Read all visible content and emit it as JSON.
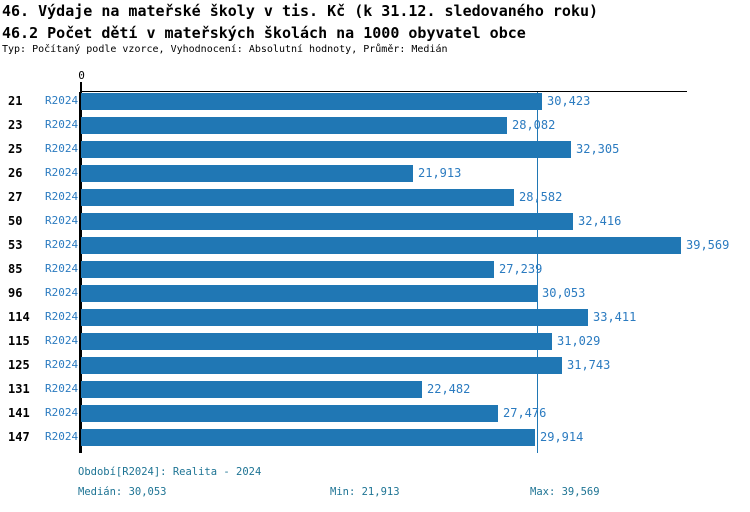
{
  "header": {
    "title": "46. Výdaje na mateřské školy v tis. Kč (k 31.12. sledovaného roku)",
    "subtitle": "46.2 Počet dětí v mateřských školách na 1000 obyvatel obce",
    "meta": "Typ: Počítaný podle vzorce, Vyhodnocení: Absolutní hodnoty, Průměr: Medián"
  },
  "chart": {
    "zero_label": "0",
    "period_label": "R2024"
  },
  "chart_data": {
    "type": "bar",
    "orientation": "horizontal",
    "title": "46. Výdaje na mateřské školy v tis. Kč (k 31.12. sledovaného roku)",
    "xlabel": "",
    "ylabel": "",
    "categories": [
      "21",
      "23",
      "25",
      "26",
      "27",
      "50",
      "53",
      "85",
      "96",
      "114",
      "115",
      "125",
      "131",
      "141",
      "147"
    ],
    "series": [
      {
        "name": "R2024",
        "values": [
          30.423,
          28.082,
          32.305,
          21.913,
          28.582,
          32.416,
          39.569,
          27.239,
          30.053,
          33.411,
          31.029,
          31.743,
          22.482,
          27.476,
          29.914
        ],
        "value_labels": [
          "30,423",
          "28,082",
          "32,305",
          "21,913",
          "28,582",
          "32,416",
          "39,569",
          "27,239",
          "30,053",
          "33,411",
          "31,029",
          "31,743",
          "22,482",
          "27,476",
          "29,914"
        ]
      }
    ],
    "xlim": [
      0,
      39.569
    ],
    "median": 30.053,
    "min": 21.913,
    "max": 39.569,
    "grid": false,
    "legend_position": "none",
    "median_line": true
  },
  "footer": {
    "period": "Období[R2024]: Realita - 2024",
    "median": "Medián: 30,053",
    "min": "Min: 21,913",
    "max": "Max: 39,569"
  },
  "colors": {
    "bar": "#2077B4",
    "label_blue": "#2B7BC0",
    "footer_teal": "#1E7494",
    "axis": "#000000"
  }
}
